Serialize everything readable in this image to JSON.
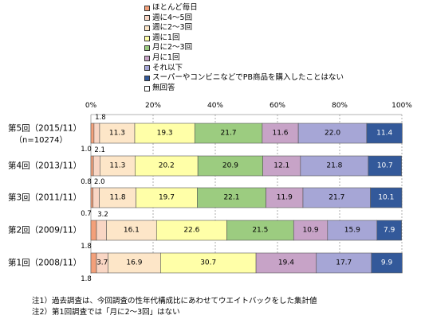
{
  "legend": [
    {
      "label": "ほとんど毎日",
      "color": "#f3a07a"
    },
    {
      "label": "週に4～5回",
      "color": "#f9d6c4"
    },
    {
      "label": "週に2～3回",
      "color": "#fde6c8"
    },
    {
      "label": "週に1回",
      "color": "#ffffa8"
    },
    {
      "label": "月に2～3回",
      "color": "#9ccc80"
    },
    {
      "label": "月に1回",
      "color": "#c7a3c7"
    },
    {
      "label": "それ以下",
      "color": "#a6a6d6"
    },
    {
      "label": "スーパーやコンビニなどでPB商品を購入したことはない",
      "color": "#33599a"
    },
    {
      "label": "無回答",
      "color": "#ffffff"
    }
  ],
  "notes": [
    "注1）過去調査は、今回調査の性年代構成比にあわせてウエイトバックをした集計値",
    "注2）第1回調査では「月に2～3回」はない"
  ],
  "chart_data": {
    "type": "bar",
    "orientation": "horizontal",
    "stacked": true,
    "xlim": [
      0,
      100
    ],
    "x_ticks": [
      "0%",
      "20%",
      "40%",
      "60%",
      "80%",
      "100%"
    ],
    "categories": [
      {
        "label": "第5回（2015/11）",
        "sublabel": "（n=10274）"
      },
      {
        "label": "第4回（2013/11）",
        "sublabel": ""
      },
      {
        "label": "第3回（2011/11）",
        "sublabel": ""
      },
      {
        "label": "第2回（2009/11）",
        "sublabel": ""
      },
      {
        "label": "第1回（2008/11）",
        "sublabel": ""
      }
    ],
    "series": [
      {
        "name": "ほとんど毎日",
        "values": [
          1.0,
          0.8,
          0.7,
          1.8,
          1.8
        ],
        "color": "#f3a07a"
      },
      {
        "name": "週に4～5回",
        "values": [
          1.8,
          2.1,
          2.0,
          3.2,
          3.7
        ],
        "color": "#f9d6c4"
      },
      {
        "name": "週に2～3回",
        "values": [
          11.3,
          11.3,
          11.8,
          16.1,
          16.9
        ],
        "color": "#fde6c8"
      },
      {
        "name": "週に1回",
        "values": [
          19.3,
          20.2,
          19.7,
          22.6,
          30.7
        ],
        "color": "#ffffa8"
      },
      {
        "name": "月に2～3回",
        "values": [
          21.7,
          20.9,
          22.1,
          21.5,
          null
        ],
        "color": "#9ccc80"
      },
      {
        "name": "月に1回",
        "values": [
          11.6,
          12.1,
          11.9,
          10.9,
          19.4
        ],
        "color": "#c7a3c7"
      },
      {
        "name": "それ以下",
        "values": [
          22.0,
          21.8,
          21.7,
          15.9,
          17.7
        ],
        "color": "#a6a6d6"
      },
      {
        "name": "スーパーやコンビニなどでPB商品を購入したことはない",
        "values": [
          11.4,
          10.7,
          10.1,
          7.9,
          9.9
        ],
        "color": "#33599a"
      },
      {
        "name": "無回答",
        "values": [
          0,
          0,
          0,
          0,
          0
        ],
        "color": "#ffffff"
      }
    ],
    "display_labels": {
      "ほとんど毎日": [
        "1.0",
        "0.8",
        "0.7",
        "1.8",
        "1.8"
      ],
      "週に4～5回": [
        "1.8",
        "2.1",
        "2.0",
        "3.2",
        "3.7"
      ],
      "週に2～3回": [
        "11.3",
        "11.3",
        "11.8",
        "16.1",
        "16.9"
      ],
      "週に1回": [
        "19.3",
        "20.2",
        "19.7",
        "22.6",
        "30.7"
      ],
      "月に2～3回": [
        "21.7",
        "20.9",
        "22.1",
        "21.5",
        ""
      ],
      "月に1回": [
        "11.6",
        "12.1",
        "11.9",
        "10.9",
        "19.4"
      ],
      "それ以下": [
        "22.0",
        "21.8",
        "21.7",
        "15.9",
        "17.7"
      ],
      "スーパーやコンビニなどでPB商品を購入したことはない": [
        "11.4",
        "10.7",
        "10.1",
        "7.9",
        "9.9"
      ]
    },
    "grid": true,
    "legend_position": "top"
  }
}
